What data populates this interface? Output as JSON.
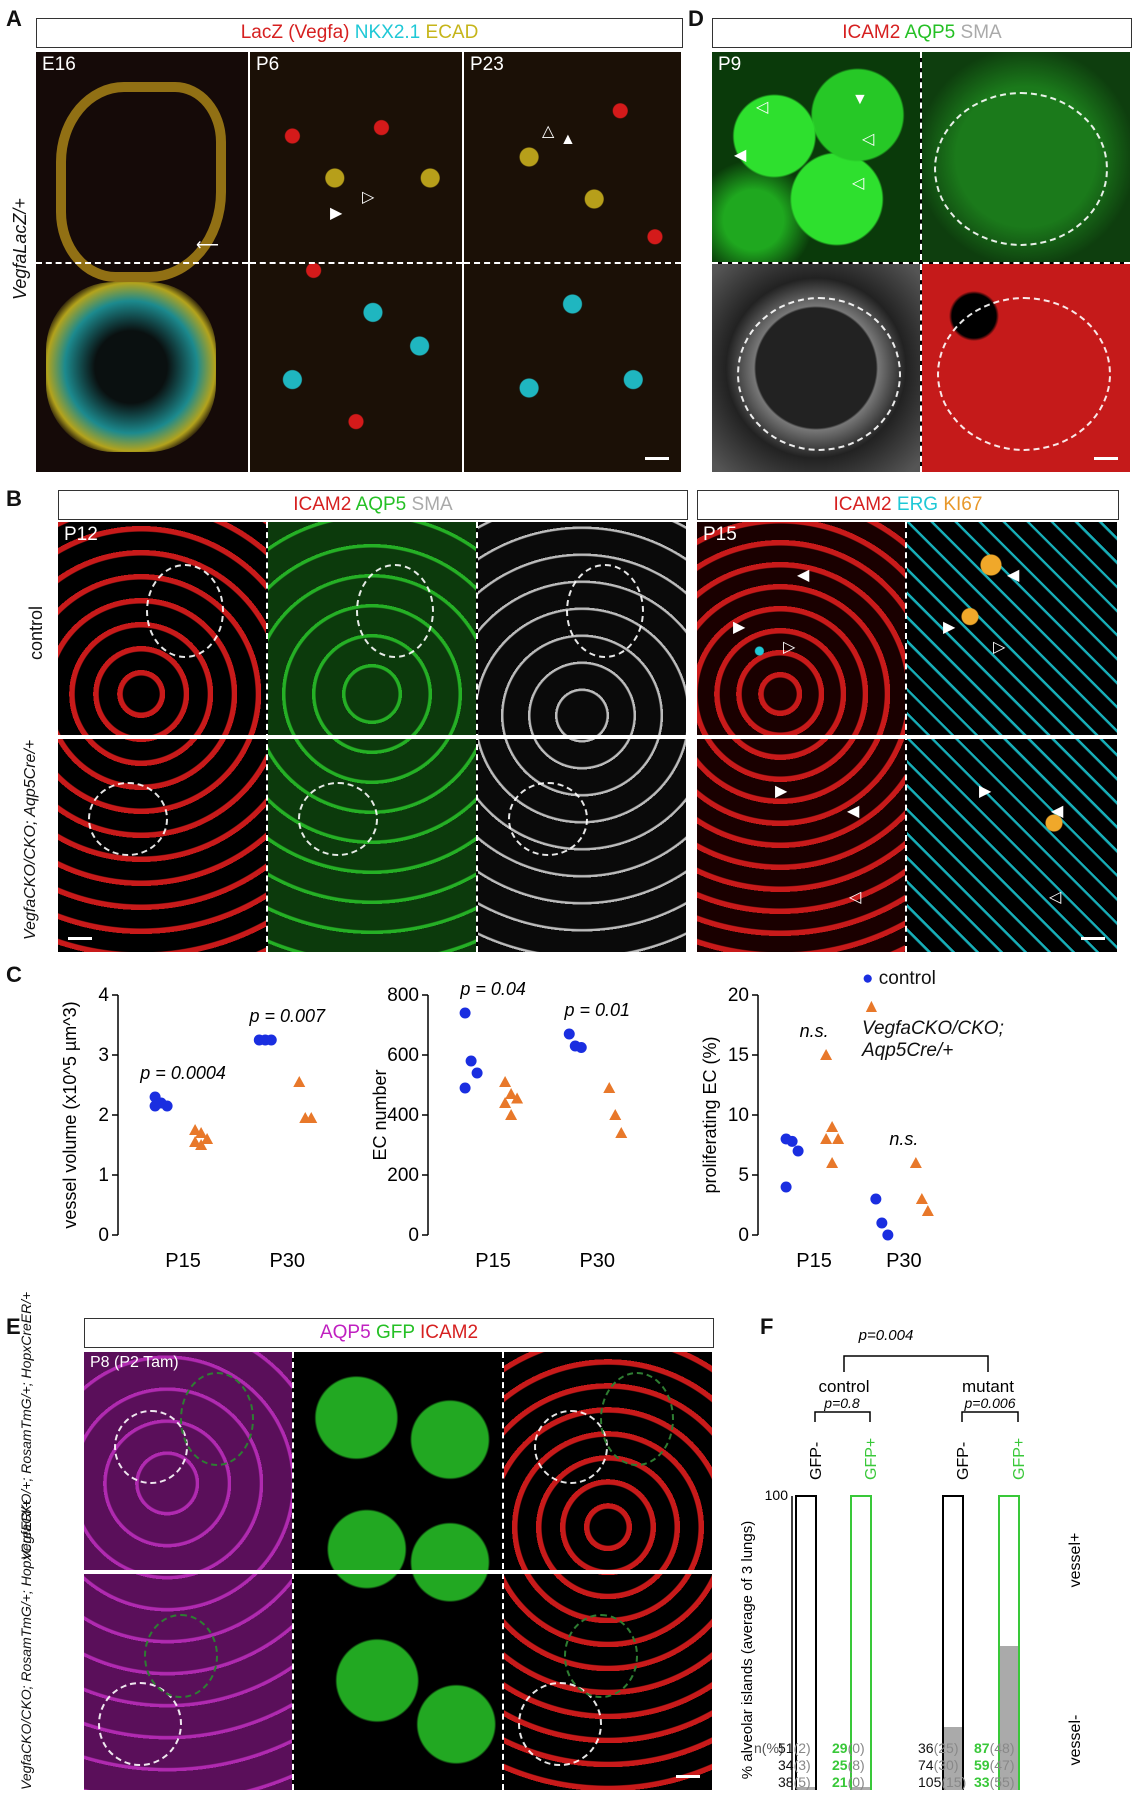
{
  "panelA": {
    "letter": "A",
    "header": {
      "lacz": "LacZ (Vegfa)",
      "nkx": "NKX2.1",
      "ecad": "ECAD"
    },
    "genotype": "VegfaLacZ/+",
    "ages": [
      "E16",
      "P6",
      "P23"
    ]
  },
  "panelB": {
    "letter": "B",
    "header1": {
      "a": "ICAM2",
      "b": "AQP5",
      "c": "SMA"
    },
    "header2": {
      "a": "ICAM2",
      "b": "ERG",
      "c": "KI67"
    },
    "age1": "P12",
    "age2": "P15",
    "row_control": "control",
    "row_mutant": "VegfaCKO/CKO; Aqp5Cre/+"
  },
  "panelD": {
    "letter": "D",
    "header": {
      "a": "ICAM2",
      "b": "AQP5",
      "c": "SMA"
    },
    "age": "P9"
  },
  "panelC": {
    "letter": "C",
    "legend": {
      "control": "control",
      "mutant": "VegfaCKO/CKO; Aqp5Cre/+"
    }
  },
  "panelE": {
    "letter": "E",
    "header": {
      "a": "AQP5",
      "b": "GFP",
      "c": "ICAM2"
    },
    "age": "P8 (P2 Tam)",
    "row1": "VegfaCKO/+; RosamTmG/+; HopxCreER/+",
    "row2": "VegfaCKO/CKO; RosamTmG/+; HopxCreER/+"
  },
  "panelF": {
    "letter": "F",
    "p_main": "p=0.004",
    "group_control": "control",
    "group_mutant": "mutant",
    "p_control": "p=0.8",
    "p_mutant": "p=0.006",
    "bar_labels": [
      "GFP-",
      "GFP+",
      "GFP-",
      "GFP+"
    ],
    "ylabel": "% alveolar islands (average of 3 lungs)",
    "yticks": [
      "100",
      "0"
    ],
    "vessel_pos": "vessel+",
    "vessel_neg": "vessel-",
    "n_label": "n(%)",
    "n_rows": [
      [
        [
          "51",
          "2"
        ],
        [
          "29",
          "0"
        ],
        [
          "36",
          "25"
        ],
        [
          "87",
          "48"
        ]
      ],
      [
        [
          "34",
          "3"
        ],
        [
          "25",
          "8"
        ],
        [
          "74",
          "30"
        ],
        [
          "59",
          "47"
        ]
      ],
      [
        [
          "38",
          "5"
        ],
        [
          "21",
          "0"
        ],
        [
          "105",
          "15"
        ],
        [
          "33",
          "55"
        ]
      ]
    ],
    "colors": {
      "gfp_pos": "#39c839",
      "gray": "#aaaaaa"
    }
  },
  "chart_data": [
    {
      "type": "scatter",
      "ylabel": "vessel volume (x10^5 µm^3)",
      "categories": [
        "P15",
        "P30"
      ],
      "ylim": [
        0,
        4
      ],
      "yticks": [
        "0",
        "1",
        "2",
        "3",
        "4"
      ],
      "series": [
        {
          "name": "control",
          "color": "#1a2ee0",
          "marker": "circle",
          "points": [
            [
              0,
              2.3
            ],
            [
              0,
              2.2
            ],
            [
              0,
              2.15
            ],
            [
              0,
              2.15
            ],
            [
              1,
              3.25
            ],
            [
              1,
              3.25
            ],
            [
              1,
              3.25
            ]
          ]
        },
        {
          "name": "VegfaCKO/CKO; Aqp5Cre/+",
          "color": "#e8782a",
          "marker": "triangle",
          "points": [
            [
              0,
              1.75
            ],
            [
              0,
              1.7
            ],
            [
              0,
              1.6
            ],
            [
              0,
              1.55
            ],
            [
              0,
              1.5
            ],
            [
              1,
              2.55
            ],
            [
              1,
              1.95
            ],
            [
              1,
              1.95
            ]
          ]
        }
      ],
      "annotations": [
        {
          "x": 0,
          "text": "p = 0.0004"
        },
        {
          "x": 1,
          "text": "p = 0.007"
        }
      ]
    },
    {
      "type": "scatter",
      "ylabel": "EC number",
      "categories": [
        "P15",
        "P30"
      ],
      "ylim": [
        0,
        800
      ],
      "yticks": [
        "0",
        "200",
        "400",
        "600",
        "800"
      ],
      "series": [
        {
          "name": "control",
          "color": "#1a2ee0",
          "marker": "circle",
          "points": [
            [
              0,
              740
            ],
            [
              0,
              580
            ],
            [
              0,
              540
            ],
            [
              0,
              490
            ],
            [
              1,
              670
            ],
            [
              1,
              630
            ],
            [
              1,
              625
            ]
          ]
        },
        {
          "name": "VegfaCKO/CKO; Aqp5Cre/+",
          "color": "#e8782a",
          "marker": "triangle",
          "points": [
            [
              0,
              510
            ],
            [
              0,
              470
            ],
            [
              0,
              455
            ],
            [
              0,
              440
            ],
            [
              0,
              400
            ],
            [
              1,
              490
            ],
            [
              1,
              400
            ],
            [
              1,
              340
            ]
          ]
        }
      ],
      "annotations": [
        {
          "x": 0,
          "text": "p = 0.04"
        },
        {
          "x": 1,
          "text": "p = 0.01"
        }
      ]
    },
    {
      "type": "scatter",
      "ylabel": "proliferating EC (%)",
      "categories": [
        "P15",
        "P30"
      ],
      "ylim": [
        0,
        20
      ],
      "yticks": [
        "0",
        "5",
        "10",
        "15",
        "20"
      ],
      "series": [
        {
          "name": "control",
          "color": "#1a2ee0",
          "marker": "circle",
          "points": [
            [
              0,
              8
            ],
            [
              0,
              7.8
            ],
            [
              0,
              7
            ],
            [
              0,
              4
            ],
            [
              1,
              3
            ],
            [
              1,
              1
            ],
            [
              1,
              0
            ]
          ]
        },
        {
          "name": "VegfaCKO/CKO; Aqp5Cre/+",
          "color": "#e8782a",
          "marker": "triangle",
          "points": [
            [
              0,
              15
            ],
            [
              0,
              9
            ],
            [
              0,
              8
            ],
            [
              0,
              8
            ],
            [
              0,
              6
            ],
            [
              1,
              6
            ],
            [
              1,
              3
            ],
            [
              1,
              2
            ]
          ]
        }
      ],
      "annotations": [
        {
          "x": 0,
          "text": "n.s."
        },
        {
          "x": 1,
          "text": "n.s."
        }
      ]
    },
    {
      "type": "bar",
      "ylabel": "% alveolar islands (average of 3 lungs)",
      "categories": [
        "GFP-",
        "GFP+",
        "GFP-",
        "GFP+"
      ],
      "ylim": [
        0,
        100
      ],
      "series": [
        {
          "name": "vessel-",
          "values": [
            3,
            3,
            23,
            50
          ]
        },
        {
          "name": "vessel+",
          "values": [
            97,
            97,
            77,
            50
          ]
        }
      ]
    }
  ]
}
